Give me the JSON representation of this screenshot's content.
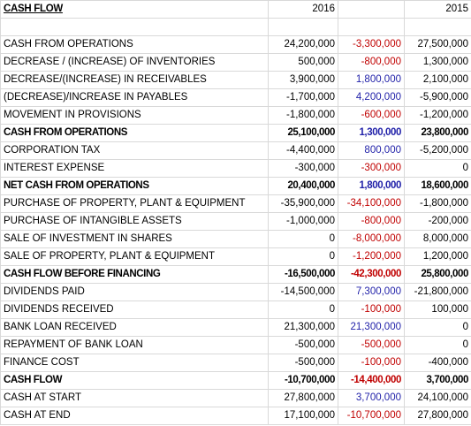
{
  "header": {
    "title": "CASH FLOW",
    "year_current": "2016",
    "year_previous": "2015"
  },
  "table": {
    "change_colors": {
      "negative": "#c00000",
      "positive": "#1f1fa8"
    },
    "rows": [
      {
        "cells": [
          "CASH FROM OPERATIONS",
          "24,200,000",
          "-3,300,000",
          "27,500,000"
        ],
        "bold": false,
        "change": "negative"
      },
      {
        "cells": [
          "DECREASE / (INCREASE) OF INVENTORIES",
          "500,000",
          "-800,000",
          "1,300,000"
        ],
        "bold": false,
        "change": "negative"
      },
      {
        "cells": [
          "DECREASE/(INCREASE) IN RECEIVABLES",
          "3,900,000",
          "1,800,000",
          "2,100,000"
        ],
        "bold": false,
        "change": "positive"
      },
      {
        "cells": [
          "(DECREASE)/INCREASE IN PAYABLES",
          "-1,700,000",
          "4,200,000",
          "-5,900,000"
        ],
        "bold": false,
        "change": "positive"
      },
      {
        "cells": [
          "MOVEMENT IN PROVISIONS",
          "-1,800,000",
          "-600,000",
          "-1,200,000"
        ],
        "bold": false,
        "change": "negative"
      },
      {
        "cells": [
          "CASH FROM OPERATIONS",
          "25,100,000",
          "1,300,000",
          "23,800,000"
        ],
        "bold": true,
        "change": "positive"
      },
      {
        "cells": [
          "CORPORATION TAX",
          "-4,400,000",
          "800,000",
          "-5,200,000"
        ],
        "bold": false,
        "change": "positive"
      },
      {
        "cells": [
          "INTEREST EXPENSE",
          "-300,000",
          "-300,000",
          "0"
        ],
        "bold": false,
        "change": "negative"
      },
      {
        "cells": [
          "NET CASH FROM OPERATIONS",
          "20,400,000",
          "1,800,000",
          "18,600,000"
        ],
        "bold": true,
        "change": "positive"
      },
      {
        "cells": [
          "PURCHASE OF PROPERTY, PLANT & EQUIPMENT",
          "-35,900,000",
          "-34,100,000",
          "-1,800,000"
        ],
        "bold": false,
        "change": "negative"
      },
      {
        "cells": [
          "PURCHASE OF INTANGIBLE ASSETS",
          "-1,000,000",
          "-800,000",
          "-200,000"
        ],
        "bold": false,
        "change": "negative"
      },
      {
        "cells": [
          "SALE OF INVESTMENT IN SHARES",
          "0",
          "-8,000,000",
          "8,000,000"
        ],
        "bold": false,
        "change": "negative"
      },
      {
        "cells": [
          "SALE OF PROPERTY, PLANT & EQUIPMENT",
          "0",
          "-1,200,000",
          "1,200,000"
        ],
        "bold": false,
        "change": "negative"
      },
      {
        "cells": [
          "CASH FLOW BEFORE FINANCING",
          "-16,500,000",
          "-42,300,000",
          "25,800,000"
        ],
        "bold": true,
        "change": "negative"
      },
      {
        "cells": [
          "DIVIDENDS PAID",
          "-14,500,000",
          "7,300,000",
          "-21,800,000"
        ],
        "bold": false,
        "change": "positive"
      },
      {
        "cells": [
          "DIVIDENDS RECEIVED",
          "0",
          "-100,000",
          "100,000"
        ],
        "bold": false,
        "change": "negative"
      },
      {
        "cells": [
          "BANK LOAN RECEIVED",
          "21,300,000",
          "21,300,000",
          "0"
        ],
        "bold": false,
        "change": "positive"
      },
      {
        "cells": [
          "REPAYMENT OF BANK LOAN",
          "-500,000",
          "-500,000",
          "0"
        ],
        "bold": false,
        "change": "negative"
      },
      {
        "cells": [
          "FINANCE COST",
          "-500,000",
          "-100,000",
          "-400,000"
        ],
        "bold": false,
        "change": "negative"
      },
      {
        "cells": [
          "CASH FLOW",
          "-10,700,000",
          "-14,400,000",
          "3,700,000"
        ],
        "bold": true,
        "change": "negative"
      },
      {
        "cells": [
          "CASH AT START",
          "27,800,000",
          "3,700,000",
          "24,100,000"
        ],
        "bold": false,
        "change": "positive"
      },
      {
        "cells": [
          "CASH AT END",
          "17,100,000",
          "-10,700,000",
          "27,800,000"
        ],
        "bold": false,
        "change": "negative"
      }
    ]
  }
}
